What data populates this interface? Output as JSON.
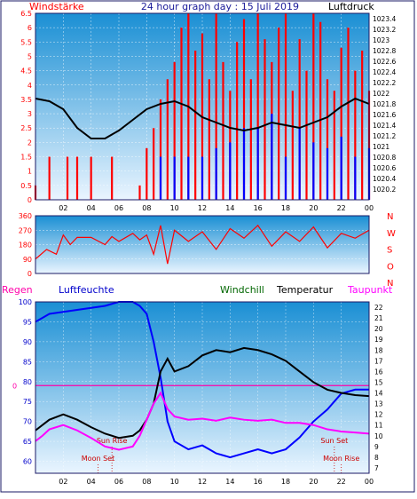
{
  "colors": {
    "background": "#ffffff",
    "frame": "#1a1a66",
    "plot_top": "#1a8fd4",
    "plot_bottom": "#eaf5ff",
    "grid": "#ffffff",
    "wind_gust": "#ff0000",
    "wind_avg": "#0000ff",
    "pressure": "#000000",
    "wind_dir": "#ff0000",
    "rain_axis": "#ff0000",
    "humidity": "#0000ff",
    "windchill": "#006600",
    "temperature": "#000000",
    "dewpoint": "#ff00ff",
    "sun_moon": "#cc0000",
    "reference_line": "#ff00aa"
  },
  "header": {
    "left_label": "Windstärke",
    "title": "24 hour graph day : 15 Juli 2019",
    "right_label": "Luftdruck"
  },
  "legend": {
    "rain": "Regen",
    "humidity": "Luftfeuchte",
    "windchill": "Windchill",
    "temperature": "Temperatur",
    "dewpoint": "Taupunkt"
  },
  "annotations": {
    "sun_rise": "Sun Rise",
    "sun_set": "Sun Set",
    "moon_set": "Moon Set",
    "moon_rise": "Moon Rise"
  },
  "chart_data": [
    {
      "type": "line",
      "id": "wind_pressure",
      "x_unit": "hour",
      "xlim": [
        0,
        24
      ],
      "x_ticks": [
        "02",
        "04",
        "06",
        "08",
        "10",
        "12",
        "14",
        "16",
        "18",
        "20",
        "22",
        "00"
      ],
      "y_left_ticks": [
        "6.5",
        "6",
        "5.5",
        "5",
        "4.5",
        "4",
        "3.5",
        "3",
        "2.5",
        "2",
        "1.5",
        "1",
        "0.5",
        "0"
      ],
      "y_left_lim": [
        0,
        6.5
      ],
      "y_right_ticks": [
        "1023.4",
        "1023.2",
        "1023",
        "1022.8",
        "1022.6",
        "1022.4",
        "1022.2",
        "1022",
        "1021.8",
        "1021.6",
        "1021.4",
        "1021.2",
        "1021",
        "1020.8",
        "1020.6",
        "1020.4",
        "1020.2"
      ],
      "y_right_lim": [
        1020.0,
        1023.5
      ],
      "series": [
        {
          "name": "Windstärke",
          "axis": "left",
          "style": "gust-bars",
          "x": [
            0,
            1,
            2,
            2.3,
            3,
            4,
            4.5,
            5,
            5.5,
            6,
            6.5,
            7,
            7.5,
            8,
            8.5,
            9,
            9.5,
            10,
            10.5,
            11,
            11.5,
            12,
            12.5,
            13,
            13.5,
            14,
            14.5,
            15,
            15.5,
            16,
            16.5,
            17,
            17.5,
            18,
            18.5,
            19,
            19.5,
            20,
            20.5,
            21,
            21.5,
            22,
            22.5,
            23,
            23.5,
            24
          ],
          "values": [
            0.5,
            1.5,
            0,
            1.5,
            1.5,
            1.5,
            0,
            0,
            1.5,
            0,
            0,
            0,
            0.5,
            1.8,
            2.5,
            3.5,
            4.2,
            4.8,
            6.0,
            6.5,
            5.2,
            5.8,
            4.2,
            6.5,
            4.8,
            3.8,
            5.5,
            6.3,
            4.2,
            6.5,
            5.6,
            4.8,
            6.0,
            6.5,
            3.8,
            5.6,
            4.5,
            6.5,
            6.2,
            4.2,
            3.8,
            5.3,
            6.0,
            4.5,
            5.2,
            3.8
          ]
        },
        {
          "name": "Windstärke (Mittel)",
          "axis": "left",
          "style": "avg-bars",
          "x": [
            8,
            9,
            10,
            11,
            12,
            13,
            14,
            15,
            16,
            17,
            18,
            19,
            20,
            21,
            22,
            23,
            24
          ],
          "values": [
            0,
            1.5,
            1.5,
            1.5,
            1.5,
            1.8,
            2.0,
            2.5,
            2.5,
            3.0,
            1.5,
            2.5,
            2.0,
            1.8,
            2.2,
            1.5,
            1.8
          ]
        },
        {
          "name": "Luftdruck",
          "axis": "right",
          "style": "line",
          "x": [
            0,
            1,
            2,
            3,
            4,
            5,
            6,
            7,
            8,
            9,
            10,
            11,
            12,
            13,
            14,
            15,
            16,
            17,
            18,
            19,
            20,
            21,
            22,
            23,
            24
          ],
          "values": [
            1021.9,
            1021.85,
            1021.7,
            1021.35,
            1021.15,
            1021.15,
            1021.3,
            1021.5,
            1021.7,
            1021.8,
            1021.85,
            1021.75,
            1021.55,
            1021.45,
            1021.35,
            1021.3,
            1021.35,
            1021.45,
            1021.4,
            1021.35,
            1021.45,
            1021.55,
            1021.75,
            1021.9,
            1021.8
          ]
        }
      ]
    },
    {
      "type": "line",
      "id": "wind_direction",
      "x_unit": "hour",
      "xlim": [
        0,
        24
      ],
      "y_ticks": [
        "360",
        "270",
        "180",
        "90",
        "0"
      ],
      "y_right_labels": [
        "N",
        "W",
        "S",
        "O",
        "N"
      ],
      "ylim": [
        0,
        360
      ],
      "series": [
        {
          "name": "Windrichtung",
          "x": [
            0,
            0.8,
            1.5,
            2,
            2.5,
            3,
            4,
            5,
            5.5,
            6,
            7,
            7.5,
            8,
            8.5,
            9,
            9.5,
            10,
            11,
            12,
            13,
            14,
            15,
            16,
            17,
            18,
            19,
            20,
            21,
            22,
            23,
            24
          ],
          "values": [
            90,
            150,
            120,
            240,
            180,
            225,
            225,
            180,
            230,
            200,
            250,
            210,
            240,
            120,
            300,
            60,
            270,
            200,
            260,
            150,
            280,
            220,
            300,
            170,
            260,
            200,
            290,
            160,
            250,
            220,
            270
          ]
        }
      ]
    },
    {
      "type": "line",
      "id": "humidity_temperature",
      "x_unit": "hour",
      "xlim": [
        0,
        24
      ],
      "x_ticks": [
        "02",
        "04",
        "06",
        "08",
        "10",
        "12",
        "14",
        "16",
        "18",
        "20",
        "22",
        "00"
      ],
      "y_left_ticks": [
        "100",
        "95",
        "90",
        "85",
        "80",
        "75",
        "70",
        "65",
        "60"
      ],
      "y_left_lim": [
        57,
        100
      ],
      "y_right_ticks": [
        "22",
        "21",
        "20",
        "19",
        "18",
        "17",
        "16",
        "15",
        "14",
        "13",
        "12",
        "11",
        "10",
        "9",
        "8",
        "7"
      ],
      "y_right_lim": [
        6.5,
        22.5
      ],
      "series": [
        {
          "name": "Luftfeuchte",
          "axis": "left",
          "x": [
            0,
            0.5,
            1,
            2,
            3,
            4,
            5,
            5.5,
            6,
            7,
            7.5,
            8,
            8.5,
            9,
            9.5,
            10,
            11,
            12,
            13,
            14,
            15,
            16,
            17,
            18,
            19,
            20,
            21,
            22,
            23,
            24
          ],
          "values": [
            95,
            96,
            97,
            97.5,
            98,
            98.5,
            99,
            99.5,
            100,
            100,
            99,
            97,
            90,
            81,
            70,
            65,
            63,
            64,
            62,
            61,
            62,
            63,
            62,
            63,
            66,
            70,
            73,
            77,
            78,
            78
          ]
        },
        {
          "name": "Temperatur",
          "axis": "right",
          "x": [
            0,
            0.5,
            1,
            2,
            3,
            4,
            5,
            6,
            7,
            7.5,
            8,
            8.5,
            9,
            9.5,
            10,
            11,
            12,
            13,
            14,
            15,
            16,
            17,
            18,
            19,
            20,
            21,
            22,
            23,
            24
          ],
          "values": [
            10.5,
            11.0,
            11.5,
            12.0,
            11.5,
            10.8,
            10.2,
            9.8,
            10.0,
            10.5,
            11.5,
            13.0,
            16.0,
            17.2,
            16.0,
            16.5,
            17.5,
            18.0,
            17.8,
            18.2,
            18.0,
            17.6,
            17.0,
            16.0,
            15.0,
            14.3,
            14.0,
            13.8,
            13.7
          ]
        },
        {
          "name": "Taupunkt",
          "axis": "right",
          "x": [
            0,
            0.5,
            1,
            2,
            3,
            4,
            5,
            6,
            7,
            7.5,
            8,
            8.5,
            9,
            9.5,
            10,
            11,
            12,
            13,
            14,
            15,
            16,
            17,
            18,
            19,
            20,
            21,
            22,
            23,
            24
          ],
          "values": [
            9.5,
            10.0,
            10.6,
            11.0,
            10.5,
            9.8,
            9.0,
            8.7,
            9.0,
            10.0,
            11.5,
            13.0,
            14.0,
            12.5,
            11.8,
            11.5,
            11.6,
            11.4,
            11.7,
            11.5,
            11.4,
            11.5,
            11.2,
            11.2,
            11.0,
            10.6,
            10.4,
            10.3,
            10.2
          ]
        }
      ],
      "reference_line": {
        "axis": "left",
        "value": 79,
        "label": "0"
      },
      "events": [
        {
          "label": "Sun Rise",
          "x": 5.5
        },
        {
          "label": "Sun Set",
          "x": 21.5
        },
        {
          "label": "Moon Set",
          "x": 4.5
        },
        {
          "label": "Moon Rise",
          "x": 22
        }
      ]
    }
  ]
}
